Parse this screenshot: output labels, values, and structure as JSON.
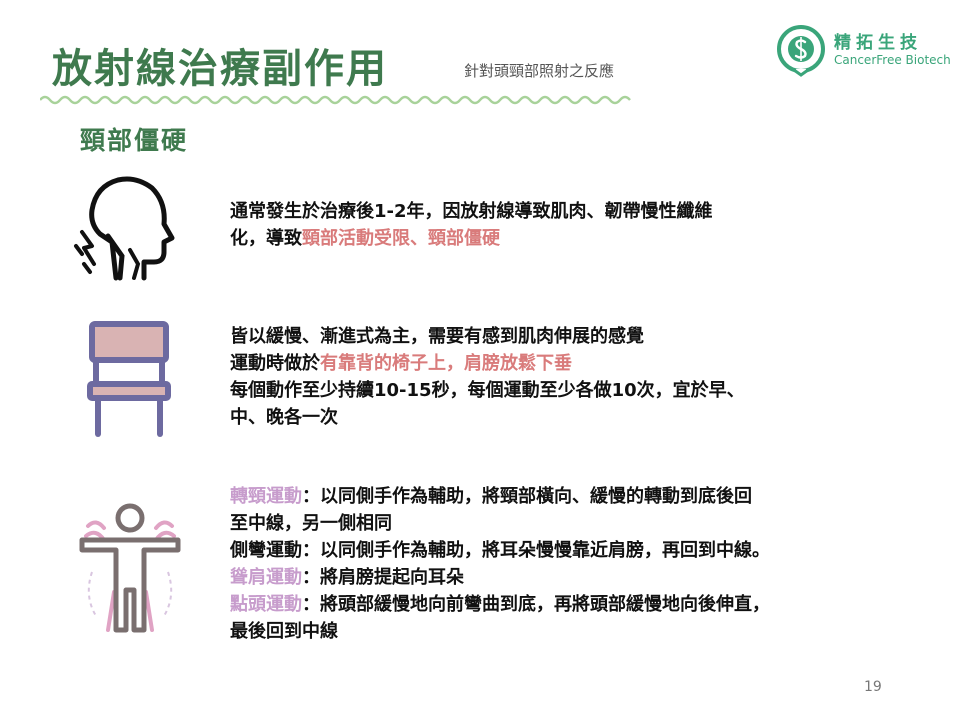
{
  "header": {
    "title": "放射線治療副作用",
    "subtitle": "針對頭頸部照射之反應"
  },
  "logo": {
    "name_cn": "精拓生技",
    "name_en": "CancerFree Biotech",
    "icon": "cancerfree-logo-icon"
  },
  "section": {
    "title": "頸部僵硬"
  },
  "blocks": {
    "description": {
      "icon": "neck-stiffness-icon",
      "line1": "通常發生於治療後1-2年，因放射線導致肌肉、韌帶慢性纖維",
      "line2_pre": "化，導致",
      "line2_highlight": "頸部活動受限、頸部僵硬"
    },
    "posture": {
      "icon": "chair-icon",
      "line1": "皆以緩慢、漸進式為主，需要有感到肌肉伸展的感覺",
      "line2_pre": "運動時做於",
      "line2_highlight": "有靠背的椅子上，肩膀放鬆下垂",
      "line3": "每個動作至少持續10-15秒，每個運動至少各做10次，宜於早、",
      "line4": "中、晚各一次"
    },
    "exercises": {
      "icon": "body-stretch-icon",
      "rotate_label": "轉頸運動",
      "rotate_text": "：以同側手作為輔助，將頸部橫向、緩慢的轉動到底後回",
      "rotate_text2": "至中線，另一側相同",
      "side_bend": "側彎運動：以同側手作為輔助，將耳朵慢慢靠近肩膀，再回到中線。",
      "shrug_label": "聳肩運動",
      "shrug_text": "：將肩膀提起向耳朵",
      "nod_label": "點頭運動",
      "nod_text": "：將頭部緩慢地向前彎曲到底，再將頭部緩慢地向後伸直，",
      "nod_text2": "最後回到中線"
    }
  },
  "page_number": "19",
  "colors": {
    "title_green": "#3f7a4e",
    "wave_green": "#a8d29a",
    "highlight_red": "#d97b7b",
    "highlight_purple": "#c79ccc",
    "chair_purple": "#6d6aa0",
    "chair_pink": "#d9b3b3",
    "logo_green": "#3aa57a"
  }
}
